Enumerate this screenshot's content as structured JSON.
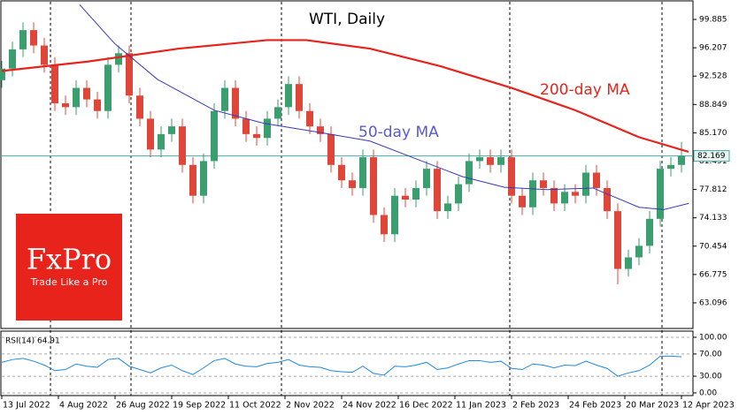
{
  "chart_data": [
    {
      "type": "candlestick",
      "title": "WTI, Daily",
      "x": [
        0,
        3,
        6,
        9,
        12,
        15,
        18,
        21,
        24,
        27,
        30,
        33,
        36,
        39,
        42,
        45,
        48,
        51,
        54,
        57,
        60,
        63,
        66,
        69,
        72,
        75,
        78,
        81,
        84,
        87,
        90,
        93,
        96,
        99,
        102,
        105,
        108,
        111,
        114,
        117,
        120,
        123,
        126,
        129,
        132,
        135,
        138,
        141,
        144,
        147,
        150,
        153,
        156,
        159,
        162,
        165,
        168,
        171,
        174,
        177,
        180,
        183,
        186,
        189,
        192
      ],
      "open": [
        92,
        93.5,
        96,
        98.5,
        96.5,
        94,
        89,
        88.5,
        91,
        89.5,
        88,
        94,
        95.5,
        90,
        87,
        83,
        85,
        86,
        81,
        77,
        81.5,
        88,
        91,
        87,
        85,
        84.5,
        87,
        88.5,
        91.5,
        88,
        86,
        85,
        81,
        79,
        78,
        82,
        74.5,
        72,
        77,
        76.5,
        78,
        80.5,
        75,
        76,
        78.5,
        81.5,
        82,
        81,
        82,
        77,
        75.5,
        79,
        78,
        76,
        77.5,
        77,
        80,
        78,
        75,
        67.5,
        69,
        70.5,
        74,
        80.5,
        81
      ],
      "high": [
        94.5,
        97,
        99.5,
        99.5,
        97.5,
        95,
        90,
        92,
        92,
        90.5,
        95,
        96.5,
        96.5,
        91,
        88,
        86,
        87,
        87,
        82,
        82.5,
        89,
        92,
        92,
        88,
        86,
        88,
        89.5,
        92.5,
        92.5,
        89,
        87,
        86,
        82,
        80,
        83,
        83,
        75.5,
        78,
        78,
        79,
        81.5,
        81.5,
        77,
        79.5,
        82.5,
        83,
        83,
        83,
        83,
        78,
        80,
        80,
        79,
        78.5,
        78.5,
        81,
        81,
        79,
        76,
        70,
        71.5,
        75,
        81.5,
        82,
        84
      ],
      "low": [
        91,
        92.5,
        95,
        95.5,
        93,
        88,
        87.5,
        87.5,
        88.5,
        87,
        87,
        93,
        89,
        86,
        82,
        82,
        84,
        80,
        76,
        76,
        80.5,
        87,
        86,
        84,
        83.5,
        83.5,
        86,
        87.5,
        87,
        85,
        84,
        80,
        78,
        77,
        77,
        73.5,
        71,
        71,
        75.5,
        75.5,
        77,
        74,
        74,
        75,
        77.5,
        80.5,
        80,
        80,
        76,
        74.5,
        74.5,
        77,
        75,
        75,
        76,
        76,
        77,
        74,
        65.5,
        66.5,
        68,
        69.5,
        73,
        79.5,
        80
      ],
      "close": [
        93.5,
        96,
        98.5,
        96.5,
        94,
        89,
        88.5,
        91,
        89.5,
        88,
        94,
        95.5,
        90,
        87,
        83,
        85,
        86,
        81,
        77,
        81.5,
        88,
        91,
        87,
        85,
        84.5,
        87,
        88.5,
        91.5,
        88,
        86,
        85,
        81,
        79,
        78,
        82,
        74.5,
        72,
        77,
        76.5,
        78,
        80.5,
        75,
        76,
        78.5,
        81.5,
        82,
        81,
        82,
        77,
        75.5,
        79,
        78,
        76,
        77.5,
        77,
        80,
        78,
        75,
        67.5,
        69,
        70.5,
        74,
        80.5,
        81,
        82.2
      ],
      "up_color": "#3a9e6e",
      "down_color": "#e0453a",
      "series": [
        {
          "name": "200-day MA",
          "color": "#e8231c",
          "x": [
            0,
            24,
            50,
            75,
            86,
            104,
            124,
            144,
            162,
            180,
            194
          ],
          "values": [
            93.2,
            94.4,
            96.1,
            97.2,
            97.2,
            96.1,
            93.8,
            91,
            88.1,
            84.6,
            82.7
          ]
        },
        {
          "name": "50-day MA",
          "color": "#3838b8",
          "x": [
            22,
            32,
            44,
            60,
            74,
            90,
            104,
            117,
            130,
            142,
            154,
            167,
            180,
            187,
            194
          ],
          "values": [
            101.8,
            96.7,
            92.1,
            88.1,
            86.4,
            85.2,
            84.1,
            81.8,
            79.5,
            78.1,
            77.8,
            78,
            75.5,
            75.2,
            76
          ]
        }
      ],
      "xlim": [
        0,
        195
      ],
      "ylim": [
        59.77,
        102.18
      ],
      "yticks": [
        99.885,
        96.207,
        92.528,
        88.849,
        {
          "value": 85.17,
          "label": "85.170"
        },
        81.491,
        77.812,
        74.133,
        70.454,
        66.775,
        63.096
      ],
      "last_price": 82.169,
      "last_price_color": "#4aa8a0",
      "logo": {
        "name": "FxPro",
        "tagline": "Trade Like a Pro",
        "color": "#e8231c"
      }
    },
    {
      "type": "line",
      "label": "RSI(14) 64.91",
      "color": "#1e88e5",
      "x": [
        0,
        3,
        6,
        9,
        12,
        15,
        18,
        21,
        24,
        27,
        30,
        33,
        36,
        39,
        42,
        45,
        48,
        51,
        54,
        57,
        60,
        63,
        66,
        69,
        72,
        75,
        78,
        81,
        84,
        87,
        90,
        93,
        96,
        99,
        102,
        105,
        108,
        111,
        114,
        117,
        120,
        123,
        126,
        129,
        132,
        135,
        138,
        141,
        144,
        147,
        150,
        153,
        156,
        159,
        162,
        165,
        168,
        171,
        174,
        177,
        180,
        183,
        186,
        189,
        192
      ],
      "values": [
        55,
        60,
        62,
        57,
        50,
        40,
        42,
        52,
        48,
        46,
        60,
        62,
        48,
        42,
        36,
        45,
        50,
        40,
        33,
        45,
        58,
        62,
        52,
        48,
        47,
        53,
        55,
        60,
        50,
        47,
        46,
        40,
        38,
        37,
        48,
        35,
        32,
        48,
        47,
        50,
        55,
        42,
        45,
        52,
        58,
        58,
        55,
        57,
        44,
        42,
        52,
        50,
        45,
        50,
        49,
        57,
        50,
        44,
        30,
        36,
        40,
        50,
        66,
        66,
        65
      ],
      "xlim": [
        0,
        195
      ],
      "ylim": [
        -4.8,
        109.5
      ],
      "yticks": [
        {
          "value": 100,
          "label": "100.00"
        },
        {
          "value": 70,
          "label": "70.00"
        },
        {
          "value": 30,
          "label": "30.00"
        },
        {
          "value": 0,
          "label": "0.00"
        }
      ],
      "xticks": [
        {
          "value": 0,
          "label": "13 Jul 2022"
        },
        {
          "value": 16,
          "label": "4 Aug 2022"
        },
        {
          "value": 32,
          "label": "26 Aug 2022"
        },
        {
          "value": 48,
          "label": "19 Sep 2022"
        },
        {
          "value": 64,
          "label": "11 Oct 2022"
        },
        {
          "value": 80,
          "label": "2 Nov 2022"
        },
        {
          "value": 96,
          "label": "24 Nov 2022"
        },
        {
          "value": 112,
          "label": "16 Dec 2022"
        },
        {
          "value": 128,
          "label": "11 Jan 2023"
        },
        {
          "value": 144,
          "label": "2 Feb 2023"
        },
        {
          "value": 160,
          "label": "24 Feb 2023"
        },
        {
          "value": 176,
          "label": "20 Mar 2023"
        },
        {
          "value": 192,
          "label": "12 Apr 2023"
        }
      ]
    }
  ]
}
